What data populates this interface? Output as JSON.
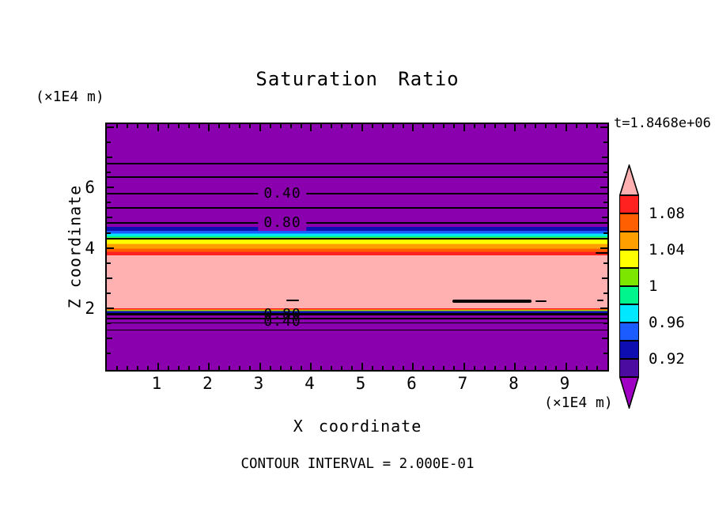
{
  "title": "Saturation Ratio",
  "time_label": "t=1.8468e+06",
  "footer": "CONTOUR INTERVAL = 2.000E-01",
  "axes": {
    "x_title": "X coordinate",
    "z_title": "Z coordinate",
    "x_unit_label": "(×1E4 m)",
    "z_unit_label": "(×1E4 m)",
    "x_tick_labels": [
      "1",
      "2",
      "3",
      "4",
      "5",
      "6",
      "7",
      "8",
      "9"
    ],
    "z_tick_labels": [
      "6",
      "4",
      "2"
    ]
  },
  "contour_labels": {
    "upper": [
      "0.40",
      "0.80"
    ],
    "lower": [
      "0.80",
      "0.40"
    ]
  },
  "colorbar": {
    "labels": [
      "1.08",
      "1.04",
      "1",
      "0.96",
      "0.92"
    ],
    "cell_colors_top_to_bottom": [
      "#FF2020",
      "#FF5F00",
      "#FFA000",
      "#FFFF00",
      "#7CE600",
      "#00F58C",
      "#00E8FF",
      "#1A5CFF",
      "#0D0DB0",
      "#4B0AA0"
    ],
    "over_color": "#FFB0B0",
    "under_color": "#A000C4"
  },
  "colors": {
    "background_fill": "#8A00AE",
    "pink_fill": "#FFB0B0",
    "frame": "#000000",
    "contour_line": "#000000"
  },
  "chart_data": {
    "type": "heatmap",
    "subtype": "filled-contour",
    "title": "Saturation Ratio",
    "time": "t=1.8468e+06",
    "xlabel": "X coordinate (×1E4 m)",
    "ylabel": "Z coordinate (×1E4 m)",
    "xlim": [
      0,
      9.9
    ],
    "ylim": [
      0,
      8.1
    ],
    "x_major_ticks": [
      1,
      2,
      3,
      4,
      5,
      6,
      7,
      8,
      9
    ],
    "z_major_ticks": [
      2,
      4,
      6
    ],
    "contour_interval": 0.2,
    "fill_levels": [
      0.9,
      0.92,
      0.94,
      0.96,
      0.98,
      1.0,
      1.02,
      1.04,
      1.06,
      1.08,
      1.1
    ],
    "fill_colors_low_to_high": [
      "#A000C4",
      "#4B0AA0",
      "#0D0DB0",
      "#1A5CFF",
      "#00E8FF",
      "#00F58C",
      "#7CE600",
      "#FFFF00",
      "#FFA000",
      "#FF5F00",
      "#FF2020",
      "#FFB0B0"
    ],
    "structure": "horizontally layered field; saturation ratio varies mainly with z, nearly uniform in x",
    "z_profile": [
      {
        "z": 8.1,
        "saturation_ratio": 0.0
      },
      {
        "z": 6.84,
        "saturation_ratio": 0.0
      },
      {
        "z": 6.39,
        "saturation_ratio": 0.2
      },
      {
        "z": 5.84,
        "saturation_ratio": 0.4
      },
      {
        "z": 5.39,
        "saturation_ratio": 0.6
      },
      {
        "z": 4.9,
        "saturation_ratio": 0.8
      },
      {
        "z": 4.36,
        "saturation_ratio": 1.0
      },
      {
        "z": 3.83,
        "saturation_ratio": 1.1
      },
      {
        "z": 2.05,
        "saturation_ratio": 1.1
      },
      {
        "z": 1.87,
        "saturation_ratio": 0.8
      },
      {
        "z": 1.74,
        "saturation_ratio": 0.6
      },
      {
        "z": 1.58,
        "saturation_ratio": 0.4
      },
      {
        "z": 1.35,
        "saturation_ratio": 0.2
      },
      {
        "z": 0.0,
        "saturation_ratio": 0.0
      }
    ],
    "labeled_contours": [
      {
        "value": 0.4,
        "z": 5.84,
        "region": "upper"
      },
      {
        "value": 0.8,
        "z": 4.9,
        "region": "upper"
      },
      {
        "value": 0.8,
        "z": 1.87,
        "region": "lower"
      },
      {
        "value": 0.4,
        "z": 1.58,
        "region": "lower"
      }
    ],
    "legend_position": "right",
    "grid": false
  }
}
